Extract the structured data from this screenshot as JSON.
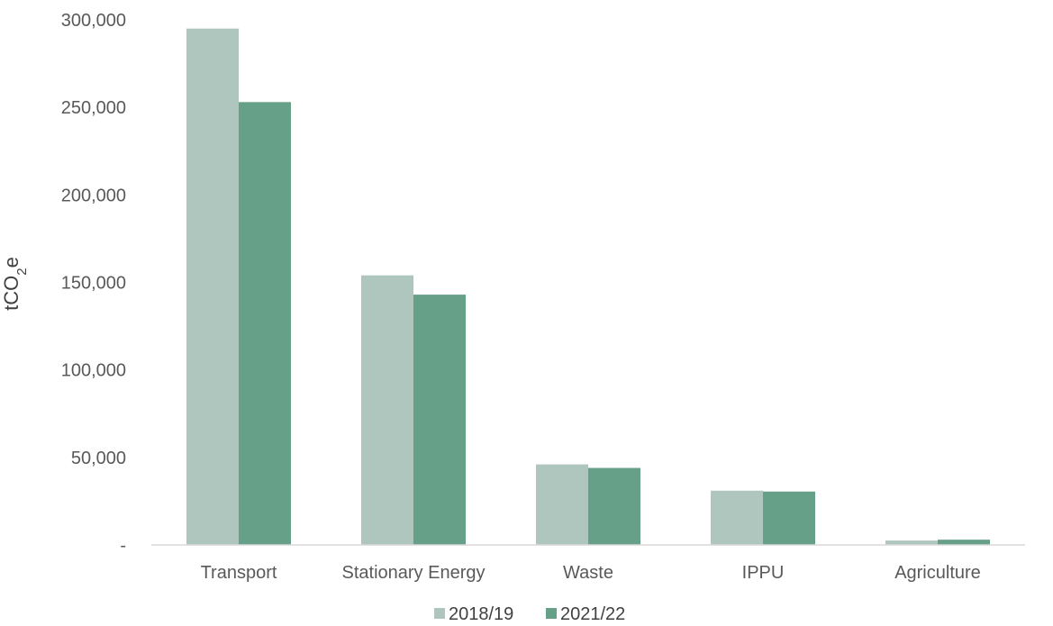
{
  "colors": {
    "series_1": "#aec6bd",
    "series_2": "#67a088",
    "axis": "#d9d9d9",
    "text": "#595959"
  },
  "chart_data": {
    "type": "bar",
    "categories": [
      "Transport",
      "Stationary Energy",
      "Waste",
      "IPPU",
      "Agriculture"
    ],
    "series": [
      {
        "name": "2018/19",
        "values": [
          295000,
          154000,
          46000,
          31000,
          2500
        ]
      },
      {
        "name": "2021/22",
        "values": [
          253000,
          143000,
          44000,
          30500,
          3000
        ]
      }
    ],
    "yticks": [
      "-",
      "50,000",
      "100,000",
      "150,000",
      "200,000",
      "250,000",
      "300,000"
    ],
    "ylabel": {
      "main": "tCO",
      "subscript": "2",
      "suffix": "e"
    },
    "ylim": [
      0,
      300000
    ],
    "grid": false,
    "legend_position": "bottom-center"
  }
}
